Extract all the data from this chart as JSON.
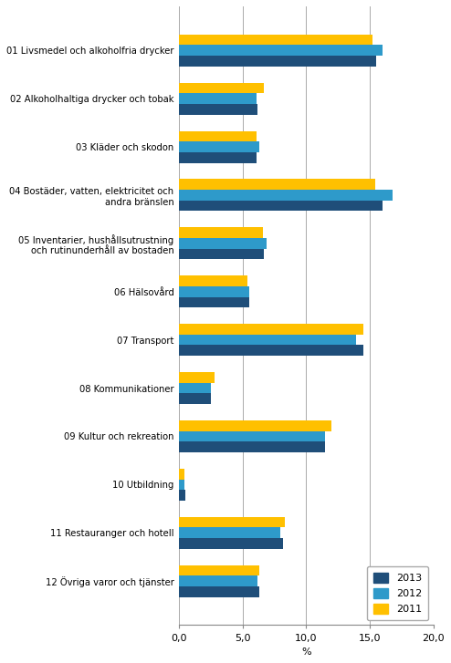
{
  "categories": [
    "01 Livsmedel och alkoholfria drycker",
    "02 Alkoholhaltiga drycker och tobak",
    "03 Kläder och skodon",
    "04 Bostäder, vatten, elektricitet och\nandra bränslen",
    "05 Inventarier, hushållsutrustning\noch rutinunderhåll av bostaden",
    "06 Hälsovård",
    "07 Transport",
    "08 Kommunikationer",
    "09 Kultur och rekreation",
    "10 Utbildning",
    "11 Restauranger och hotell",
    "12 Övriga varor och tjänster"
  ],
  "values_2013": [
    15.5,
    6.2,
    6.1,
    16.0,
    6.7,
    5.5,
    14.5,
    2.5,
    11.5,
    0.5,
    8.2,
    6.3
  ],
  "values_2012": [
    16.0,
    6.1,
    6.3,
    16.8,
    6.9,
    5.5,
    13.9,
    2.5,
    11.5,
    0.4,
    8.0,
    6.2
  ],
  "values_2011": [
    15.2,
    6.7,
    6.1,
    15.4,
    6.6,
    5.4,
    14.5,
    2.8,
    12.0,
    0.4,
    8.3,
    6.3
  ],
  "color_2013": "#1F4E79",
  "color_2012": "#2E9ACA",
  "color_2011": "#FFC000",
  "xlabel": "%",
  "xlim": [
    0,
    20.0
  ],
  "xticks": [
    0.0,
    5.0,
    10.0,
    15.0,
    20.0
  ],
  "xtick_labels": [
    "0,0",
    "5,0",
    "10,0",
    "15,0",
    "20,0"
  ],
  "legend_labels": [
    "2013",
    "2012",
    "2011"
  ],
  "bar_height": 0.22,
  "figsize": [
    4.94,
    7.27
  ],
  "dpi": 100
}
